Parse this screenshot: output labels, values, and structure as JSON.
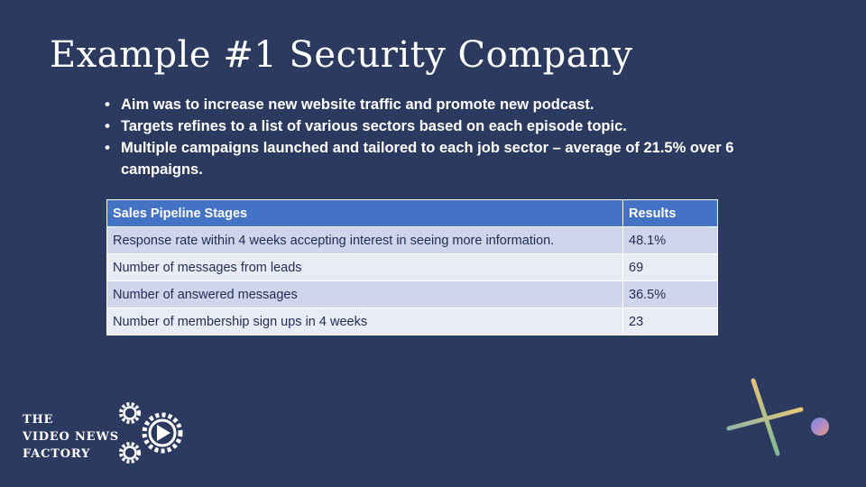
{
  "slide": {
    "title": "Example #1 Security Company",
    "bullets": [
      "Aim was to increase new website traffic and promote new podcast.",
      "Targets refines to a list of various sectors based on each episode topic.",
      "Multiple campaigns launched and tailored to each job sector – average of 21.5% over 6 campaigns."
    ],
    "bullet_symbol": "•"
  },
  "table": {
    "headers": [
      "Sales Pipeline Stages",
      "Results"
    ],
    "rows": [
      [
        "Response rate within 4 weeks accepting interest in seeing more information.",
        "48.1%"
      ],
      [
        "Number of messages from leads",
        "69"
      ],
      [
        "Number of answered messages",
        "36.5%"
      ],
      [
        "Number of membership sign ups in 4 weeks",
        "23"
      ]
    ]
  },
  "logo": {
    "line1": "THE",
    "line2": "VIDEO NEWS",
    "line3": "FACTORY",
    "icon": "gears-play-icon"
  },
  "colors": {
    "background": "#2d3a5f",
    "table_header": "#4472c4",
    "table_row_dark": "#cfd5ea",
    "table_row_light": "#e9ebf5",
    "text_white": "#ffffff"
  }
}
